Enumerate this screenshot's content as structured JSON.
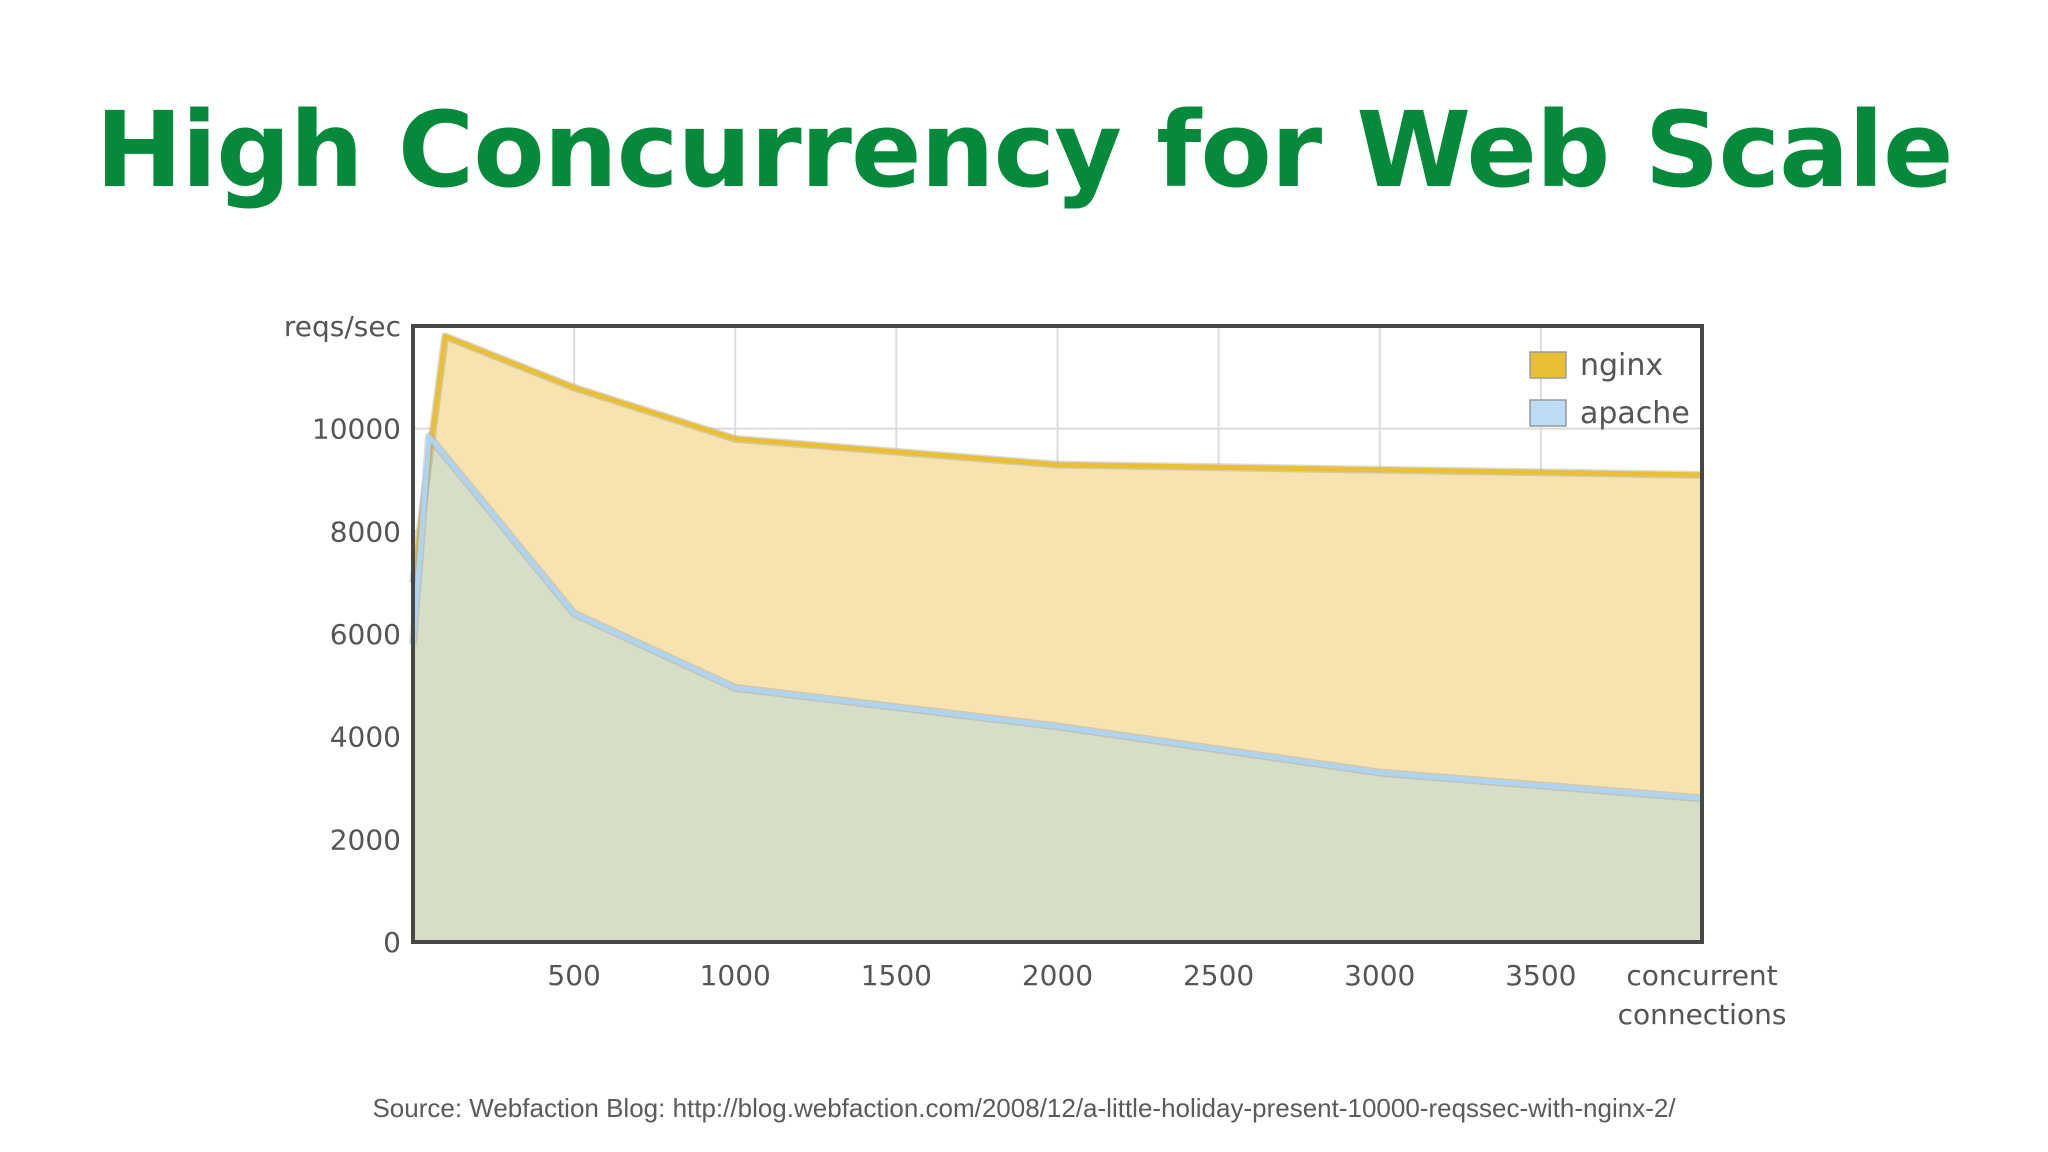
{
  "slide": {
    "title": "High Concurrency for Web Scale",
    "source": "Source: Webfaction Blog: http://blog.webfaction.com/2008/12/a-little-holiday-present-10000-reqssec-with-nginx-2/"
  },
  "chart_data": {
    "type": "area",
    "title": "",
    "ylabel": "reqs/sec",
    "xlabel_lines": [
      "concurrent",
      "connections"
    ],
    "xlim": [
      0,
      4000
    ],
    "ylim": [
      0,
      12000
    ],
    "x_ticks": [
      "500",
      "1000",
      "1500",
      "2000",
      "2500",
      "3000",
      "3500"
    ],
    "y_ticks": [
      "0",
      "2000",
      "4000",
      "6000",
      "8000",
      "10000"
    ],
    "grid": true,
    "legend_position": "top-right",
    "series": [
      {
        "name": "nginx",
        "color": "#e8bf35",
        "fill": "#f7e3b0",
        "x": [
          0,
          100,
          500,
          1000,
          2000,
          3000,
          4000
        ],
        "y": [
          7000,
          11800,
          10800,
          9800,
          9300,
          9200,
          9100
        ]
      },
      {
        "name": "apache",
        "color": "#aed4f2",
        "fill": "#d6dec8",
        "x": [
          0,
          50,
          500,
          1000,
          2000,
          3000,
          4000
        ],
        "y": [
          5800,
          9850,
          6400,
          4950,
          4200,
          3300,
          2800
        ]
      }
    ]
  }
}
